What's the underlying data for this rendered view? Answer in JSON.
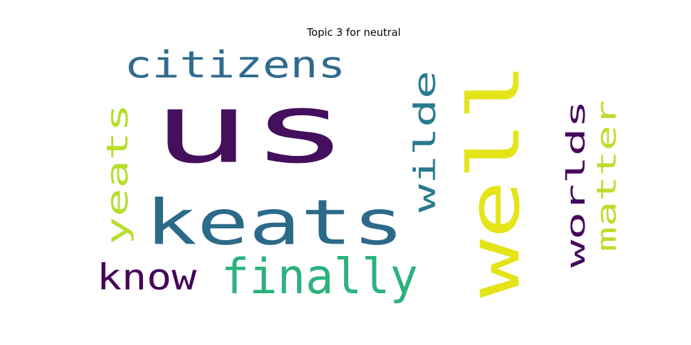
{
  "chart_data": {
    "type": "wordcloud",
    "title": "Topic 3 for neutral",
    "words": [
      {
        "text": "us",
        "weight": 1.0,
        "color": "#440f5c",
        "orientation": "horizontal"
      },
      {
        "text": "well",
        "weight": 0.78,
        "color": "#e4e419",
        "orientation": "vertical"
      },
      {
        "text": "keats",
        "weight": 0.58,
        "color": "#2c6a8a",
        "orientation": "horizontal"
      },
      {
        "text": "citizens",
        "weight": 0.38,
        "color": "#2f6b8e",
        "orientation": "horizontal"
      },
      {
        "text": "finally",
        "weight": 0.36,
        "color": "#2db27d",
        "orientation": "horizontal"
      },
      {
        "text": "yeats",
        "weight": 0.34,
        "color": "#b5de2b",
        "orientation": "vertical"
      },
      {
        "text": "wilde",
        "weight": 0.33,
        "color": "#297b8e",
        "orientation": "vertical"
      },
      {
        "text": "worlds",
        "weight": 0.32,
        "color": "#46085c",
        "orientation": "vertical"
      },
      {
        "text": "matter",
        "weight": 0.31,
        "color": "#bfdc2c",
        "orientation": "vertical"
      },
      {
        "text": "know",
        "weight": 0.3,
        "color": "#450559",
        "orientation": "horizontal"
      }
    ]
  }
}
